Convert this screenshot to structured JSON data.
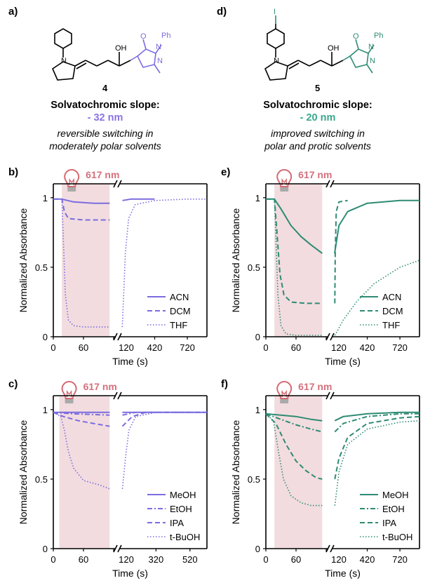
{
  "header": {
    "left": {
      "panel": "a)",
      "compound_number": "4",
      "labels": {
        "oh": "OH",
        "o": "O",
        "n1": "N",
        "n2": "N",
        "ph": "Ph",
        "n_ring": "N"
      },
      "slope_title": "Solvatochromic slope:",
      "slope_value": "- 32 nm",
      "slope_color": "#8b73e0",
      "desc_line1": "reversible switching in",
      "desc_line2": "moderately polar solvents"
    },
    "right": {
      "panel": "d)",
      "compound_number": "5",
      "labels": {
        "oh": "OH",
        "o": "O",
        "n1": "N",
        "n2": "N",
        "ph": "Ph",
        "n_ring": "N",
        "i": "I"
      },
      "slope_title": "Solvatochromic slope:",
      "slope_value": "- 20 nm",
      "slope_color": "#3aa88c",
      "desc_line1": "improved switching in",
      "desc_line2": "polar and protic solvents"
    }
  },
  "colors": {
    "purple": "#7b6ce0",
    "teal": "#2e8b74",
    "irradiation_shade": "#f2dcdf",
    "wavelength_text": "#d4707c",
    "bulb": "#d46a72"
  },
  "chart_data": [
    {
      "panel": "b)",
      "type": "line",
      "irradiation_label": "617 nm",
      "ylabel": "Normalized Absorbance",
      "xlabel": "Time (s)",
      "ylim": [
        0,
        1.1
      ],
      "yticks": [
        "0",
        "0.5",
        "1"
      ],
      "xticks_left": [
        "0",
        "60",
        "120"
      ],
      "xticks_right": [
        "420",
        "720"
      ],
      "left_range": [
        0,
        120
      ],
      "right_range": [
        120,
        900
      ],
      "irradiation_window": [
        17,
        112
      ],
      "color": "#7b6ce0",
      "series": [
        {
          "name": "ACN",
          "style": "solid",
          "left": [
            [
              0,
              0.99
            ],
            [
              17,
              0.99
            ],
            [
              40,
              0.97
            ],
            [
              80,
              0.96
            ],
            [
              112,
              0.96
            ]
          ],
          "right": [
            [
              124,
              0.98
            ],
            [
              200,
              0.99
            ],
            [
              420,
              0.99
            ]
          ]
        },
        {
          "name": "DCM",
          "style": "dash",
          "left": [
            [
              0,
              0.99
            ],
            [
              17,
              0.99
            ],
            [
              22,
              0.9
            ],
            [
              30,
              0.85
            ],
            [
              60,
              0.84
            ],
            [
              112,
              0.84
            ]
          ],
          "right": []
        },
        {
          "name": "THF",
          "style": "dot",
          "left": [
            [
              0,
              0.99
            ],
            [
              17,
              0.99
            ],
            [
              20,
              0.7
            ],
            [
              24,
              0.3
            ],
            [
              30,
              0.12
            ],
            [
              40,
              0.08
            ],
            [
              60,
              0.07
            ],
            [
              112,
              0.07
            ]
          ],
          "right": [
            [
              122,
              0.07
            ],
            [
              135,
              0.3
            ],
            [
              150,
              0.6
            ],
            [
              180,
              0.85
            ],
            [
              240,
              0.95
            ],
            [
              420,
              0.98
            ],
            [
              720,
              0.99
            ],
            [
              900,
              0.99
            ]
          ]
        }
      ]
    },
    {
      "panel": "c)",
      "type": "line",
      "irradiation_label": "617 nm",
      "ylabel": "Normalized Absorbance",
      "xlabel": "Time (s)",
      "ylim": [
        0,
        1.1
      ],
      "yticks": [
        "0",
        "0.5",
        "1"
      ],
      "xticks_left": [
        "0",
        "60",
        "120"
      ],
      "xticks_right": [
        "320",
        "520"
      ],
      "left_range": [
        0,
        120
      ],
      "right_range": [
        120,
        620
      ],
      "irradiation_window": [
        12,
        112
      ],
      "color": "#7b6ce0",
      "series": [
        {
          "name": "MeOH",
          "style": "solid",
          "left": [
            [
              0,
              0.98
            ],
            [
              60,
              0.98
            ],
            [
              112,
              0.98
            ]
          ],
          "right": [
            [
              122,
              0.98
            ],
            [
              620,
              0.98
            ]
          ]
        },
        {
          "name": "EtOH",
          "style": "dashdot",
          "left": [
            [
              0,
              0.98
            ],
            [
              40,
              0.97
            ],
            [
              112,
              0.96
            ]
          ],
          "right": [
            [
              122,
              0.96
            ],
            [
              200,
              0.98
            ],
            [
              620,
              0.98
            ]
          ]
        },
        {
          "name": "IPA",
          "style": "dash",
          "left": [
            [
              0,
              0.98
            ],
            [
              20,
              0.95
            ],
            [
              50,
              0.92
            ],
            [
              80,
              0.9
            ],
            [
              112,
              0.88
            ]
          ],
          "right": [
            [
              122,
              0.88
            ],
            [
              180,
              0.95
            ],
            [
              260,
              0.98
            ],
            [
              620,
              0.98
            ]
          ]
        },
        {
          "name": "t-BuOH",
          "style": "dot",
          "left": [
            [
              0,
              0.98
            ],
            [
              15,
              0.95
            ],
            [
              22,
              0.85
            ],
            [
              30,
              0.7
            ],
            [
              40,
              0.58
            ],
            [
              60,
              0.49
            ],
            [
              90,
              0.46
            ],
            [
              112,
              0.43
            ]
          ],
          "right": [
            [
              122,
              0.43
            ],
            [
              140,
              0.65
            ],
            [
              160,
              0.85
            ],
            [
              200,
              0.95
            ],
            [
              320,
              0.98
            ],
            [
              620,
              0.98
            ]
          ]
        }
      ]
    },
    {
      "panel": "e)",
      "type": "line",
      "irradiation_label": "617 nm",
      "ylabel": "Normalized Absorbance",
      "xlabel": "Time (s)",
      "ylim": [
        0,
        1.1
      ],
      "yticks": [
        "0",
        "0.5",
        "1"
      ],
      "xticks_left": [
        "0",
        "60",
        "120"
      ],
      "xticks_right": [
        "420",
        "720"
      ],
      "left_range": [
        0,
        120
      ],
      "right_range": [
        120,
        900
      ],
      "irradiation_window": [
        17,
        112
      ],
      "color": "#2e8b74",
      "series": [
        {
          "name": "ACN",
          "style": "solid",
          "left": [
            [
              0,
              0.99
            ],
            [
              17,
              0.99
            ],
            [
              30,
              0.92
            ],
            [
              50,
              0.8
            ],
            [
              70,
              0.72
            ],
            [
              90,
              0.66
            ],
            [
              112,
              0.6
            ]
          ],
          "right": [
            [
              120,
              0.6
            ],
            [
              160,
              0.8
            ],
            [
              240,
              0.9
            ],
            [
              420,
              0.96
            ],
            [
              720,
              0.98
            ],
            [
              900,
              0.98
            ]
          ]
        },
        {
          "name": "DCM",
          "style": "dash",
          "left": [
            [
              0,
              0.99
            ],
            [
              17,
              0.99
            ],
            [
              22,
              0.75
            ],
            [
              28,
              0.45
            ],
            [
              36,
              0.3
            ],
            [
              50,
              0.25
            ],
            [
              80,
              0.24
            ],
            [
              112,
              0.24
            ]
          ],
          "right": [
            [
              122,
              0.24
            ],
            [
              126,
              0.6
            ],
            [
              135,
              0.9
            ],
            [
              160,
              0.97
            ],
            [
              240,
              0.98
            ]
          ]
        },
        {
          "name": "THF",
          "style": "dot",
          "left": [
            [
              0,
              0.99
            ],
            [
              17,
              0.99
            ],
            [
              20,
              0.7
            ],
            [
              24,
              0.3
            ],
            [
              30,
              0.08
            ],
            [
              40,
              0.02
            ],
            [
              60,
              0.01
            ],
            [
              112,
              0.01
            ]
          ],
          "right": [
            [
              122,
              0.01
            ],
            [
              200,
              0.12
            ],
            [
              320,
              0.25
            ],
            [
              480,
              0.38
            ],
            [
              720,
              0.5
            ],
            [
              900,
              0.55
            ]
          ]
        }
      ]
    },
    {
      "panel": "f)",
      "type": "line",
      "irradiation_label": "617 nm",
      "ylabel": "Normalized Absorbance",
      "xlabel": "Time (s)",
      "ylim": [
        0,
        1.1
      ],
      "yticks": [
        "0",
        "0.5",
        "1"
      ],
      "xticks_left": [
        "0",
        "60",
        "120"
      ],
      "xticks_right": [
        "420",
        "720"
      ],
      "left_range": [
        0,
        120
      ],
      "right_range": [
        120,
        900
      ],
      "irradiation_window": [
        17,
        112
      ],
      "color": "#2e8b74",
      "series": [
        {
          "name": "MeOH",
          "style": "solid",
          "left": [
            [
              0,
              0.97
            ],
            [
              30,
              0.96
            ],
            [
              60,
              0.95
            ],
            [
              90,
              0.93
            ],
            [
              112,
              0.92
            ]
          ],
          "right": [
            [
              122,
              0.92
            ],
            [
              200,
              0.95
            ],
            [
              420,
              0.97
            ],
            [
              720,
              0.98
            ],
            [
              900,
              0.98
            ]
          ]
        },
        {
          "name": "EtOH",
          "style": "dashdot",
          "left": [
            [
              0,
              0.97
            ],
            [
              30,
              0.93
            ],
            [
              60,
              0.89
            ],
            [
              90,
              0.86
            ],
            [
              112,
              0.84
            ]
          ],
          "right": [
            [
              122,
              0.84
            ],
            [
              200,
              0.9
            ],
            [
              420,
              0.95
            ],
            [
              720,
              0.97
            ],
            [
              900,
              0.97
            ]
          ]
        },
        {
          "name": "IPA",
          "style": "dash",
          "left": [
            [
              0,
              0.97
            ],
            [
              20,
              0.9
            ],
            [
              40,
              0.75
            ],
            [
              60,
              0.63
            ],
            [
              80,
              0.56
            ],
            [
              100,
              0.51
            ],
            [
              112,
              0.5
            ]
          ],
          "right": [
            [
              122,
              0.5
            ],
            [
              160,
              0.65
            ],
            [
              240,
              0.8
            ],
            [
              420,
              0.9
            ],
            [
              720,
              0.94
            ],
            [
              900,
              0.95
            ]
          ]
        },
        {
          "name": "t-BuOH",
          "style": "dot",
          "left": [
            [
              0,
              0.97
            ],
            [
              15,
              0.92
            ],
            [
              25,
              0.7
            ],
            [
              35,
              0.5
            ],
            [
              50,
              0.38
            ],
            [
              70,
              0.33
            ],
            [
              90,
              0.31
            ],
            [
              112,
              0.31
            ]
          ],
          "right": [
            [
              122,
              0.31
            ],
            [
              160,
              0.55
            ],
            [
              240,
              0.75
            ],
            [
              420,
              0.86
            ],
            [
              720,
              0.91
            ],
            [
              900,
              0.92
            ]
          ]
        }
      ]
    }
  ]
}
